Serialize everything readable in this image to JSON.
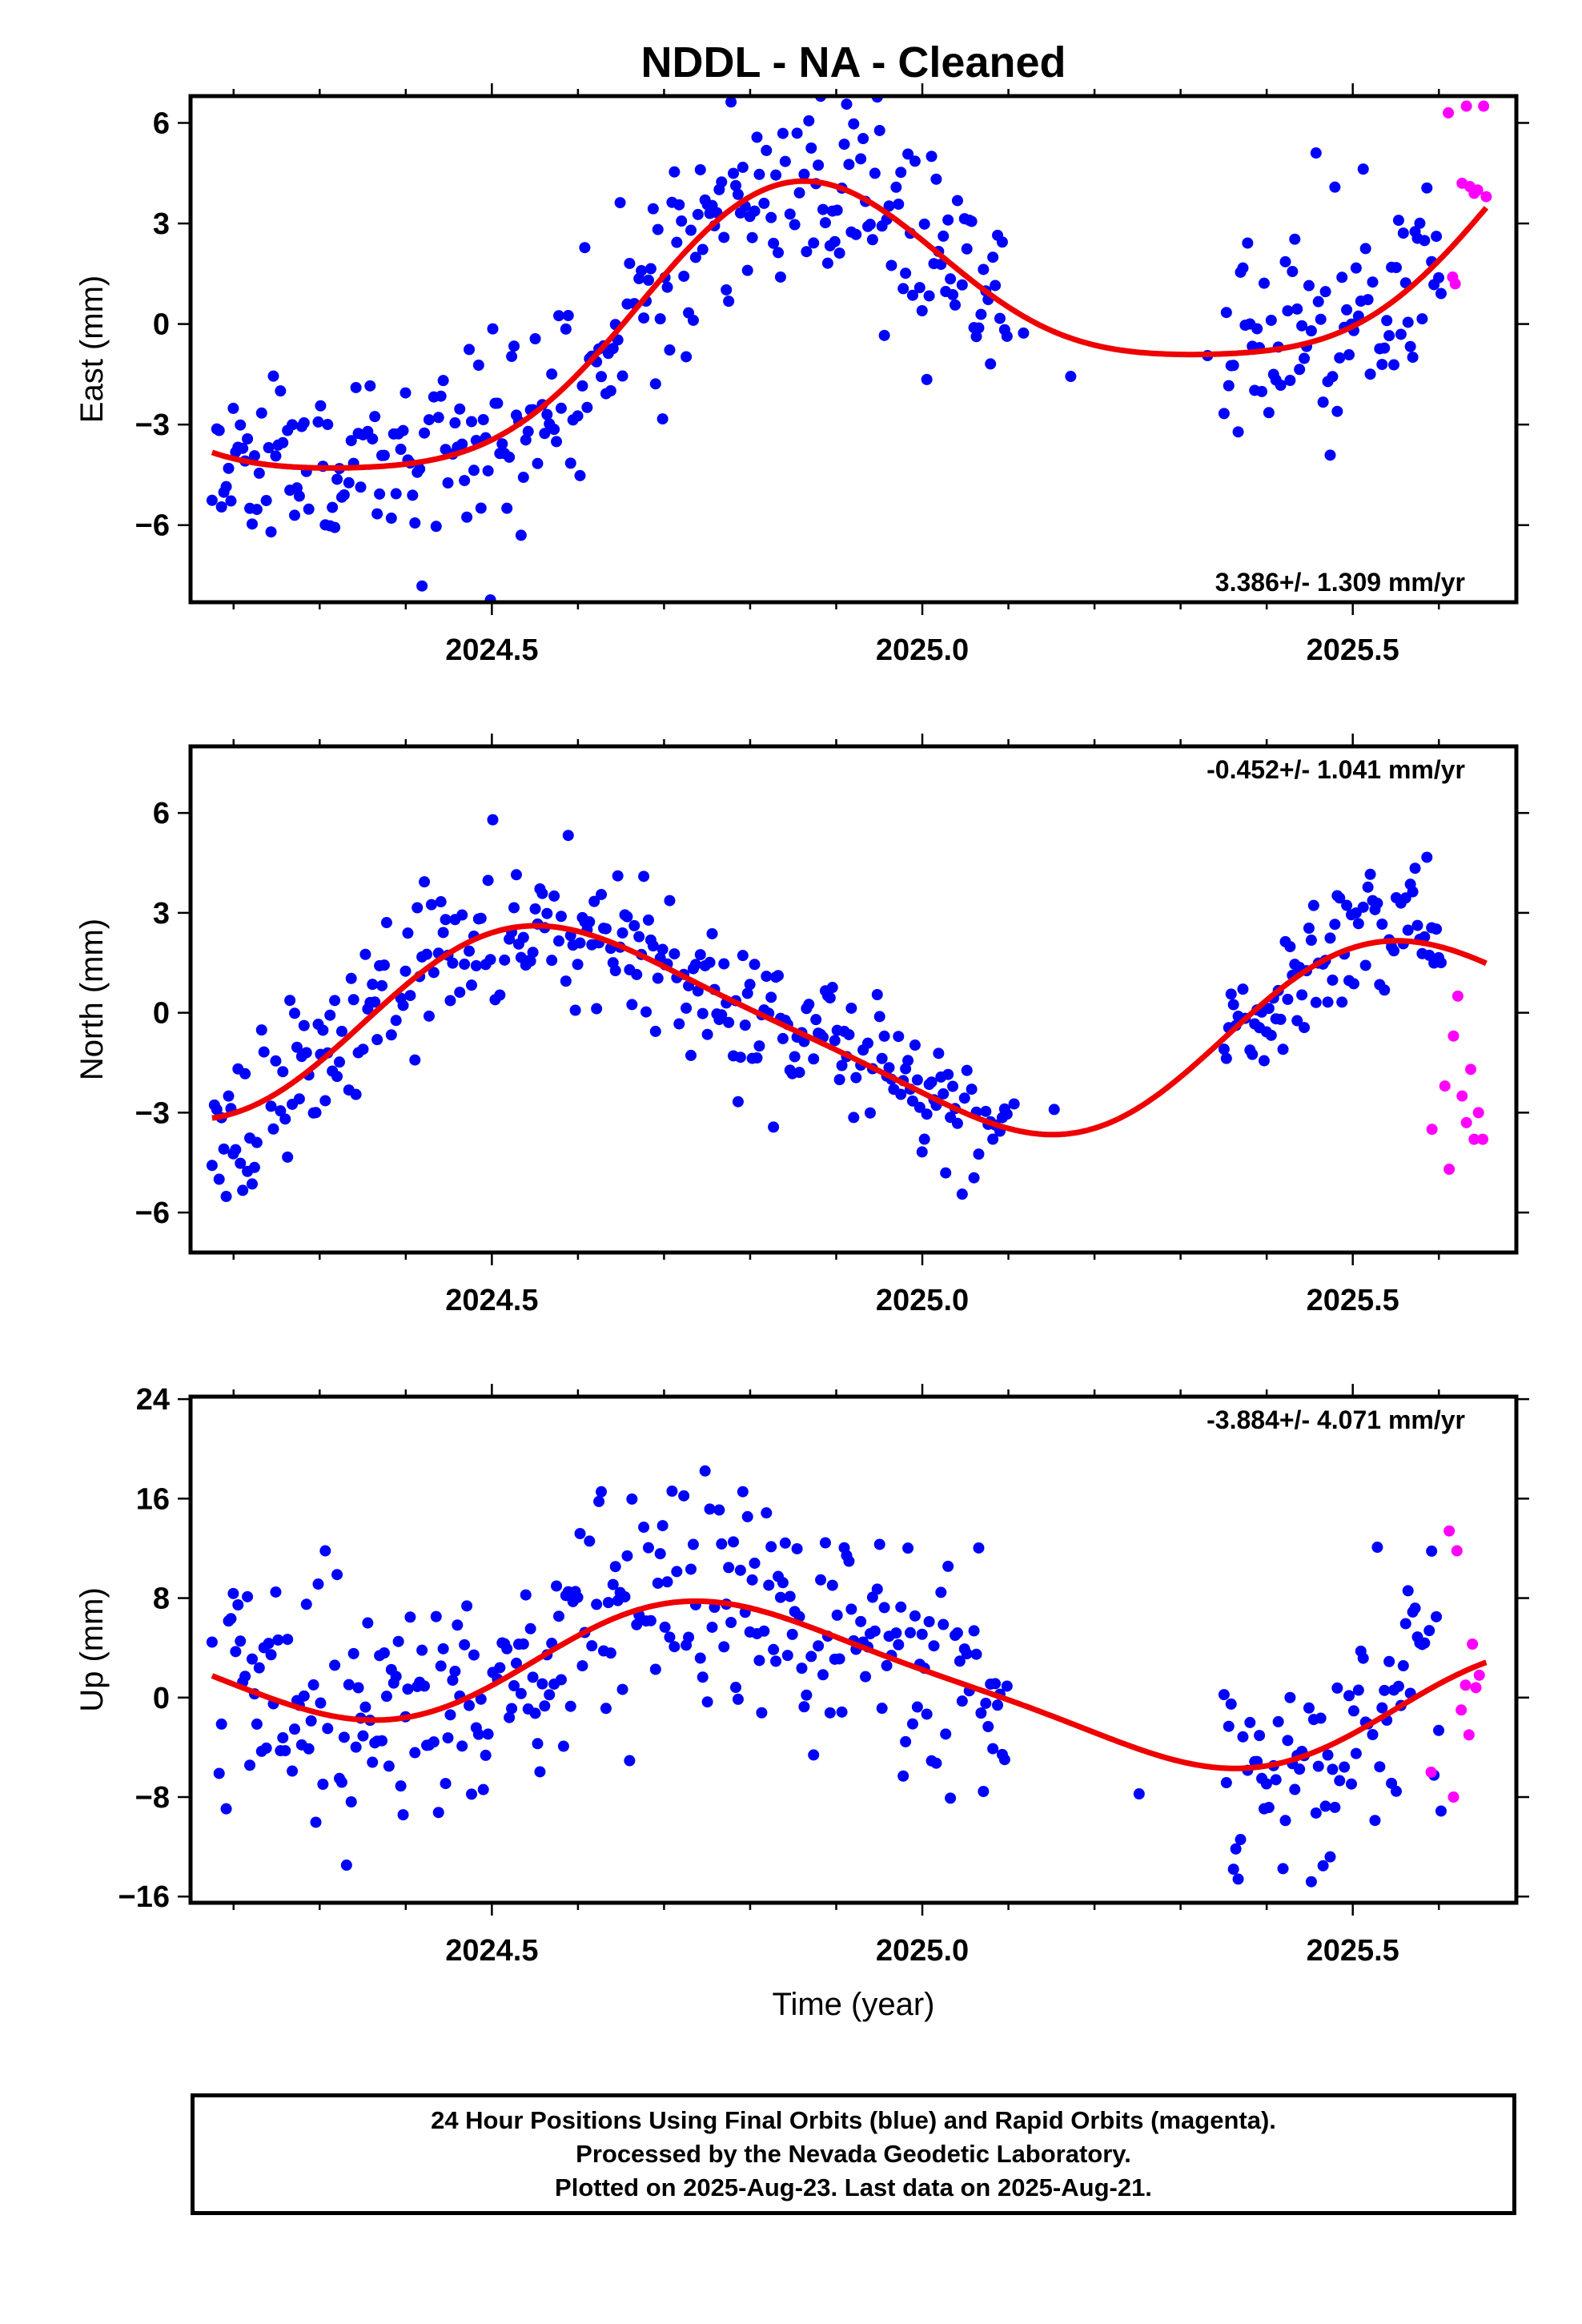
{
  "title": "NDDL  - NA - Cleaned",
  "footer": {
    "line1": "24 Hour Positions Using Final Orbits (blue) and Rapid Orbits (magenta).",
    "line2": "Processed by the Nevada Geodetic Laboratory.",
    "line3": "Plotted on 2025-Aug-23. Last data on 2025-Aug-21."
  },
  "colors": {
    "final": "#0000ff",
    "rapid": "#ff00ff",
    "model": "#ee0000",
    "axis": "#000000"
  },
  "chart_data": [
    {
      "type": "scatter",
      "id": "east",
      "ylabel": "East (mm)",
      "rate_label": "3.386+/- 1.309 mm/yr",
      "rate_position": "bottom-right",
      "xlim": [
        2024.15,
        2025.69
      ],
      "ylim": [
        -8.3,
        6.8
      ],
      "yticks": [
        -6,
        -3,
        0,
        3,
        6
      ],
      "xticks": [
        2024.5,
        2025.0,
        2025.5
      ],
      "xtick_labels": [
        "2024.5",
        "2025.0",
        "2025.5"
      ],
      "ytick_labels": [
        "−6",
        "−3",
        "0",
        "3",
        "6"
      ],
      "model": {
        "x0": 2024.8,
        "c": 0.0,
        "v": 3.386,
        "A": 1.2,
        "B": 3.2,
        "C": 0.3,
        "D": 0.6
      },
      "final": {
        "x0": 2024.175,
        "x1": 2025.605,
        "step": 0.00274,
        "gap": [
          2025.1,
          2025.35
        ],
        "noise": 1.5,
        "seed": 11
      },
      "rapid": [
        [
          2025.611,
          6.3
        ],
        [
          2025.616,
          1.4
        ],
        [
          2025.619,
          1.2
        ],
        [
          2025.627,
          4.2
        ],
        [
          2025.632,
          6.5
        ],
        [
          2025.636,
          4.1
        ],
        [
          2025.641,
          3.9
        ],
        [
          2025.645,
          4.0
        ],
        [
          2025.652,
          6.5
        ],
        [
          2025.655,
          3.8
        ]
      ]
    },
    {
      "type": "scatter",
      "id": "north",
      "ylabel": "North (mm)",
      "rate_label": "-0.452+/- 1.041 mm/yr",
      "rate_position": "top-right",
      "xlim": [
        2024.15,
        2025.69
      ],
      "ylim": [
        -7.2,
        8.0
      ],
      "yticks": [
        -6,
        -3,
        0,
        3,
        6
      ],
      "xticks": [
        2024.5,
        2025.0,
        2025.5
      ],
      "xtick_labels": [
        "2024.5",
        "2025.0",
        "2025.5"
      ],
      "ytick_labels": [
        "−6",
        "−3",
        "0",
        "3",
        "6"
      ],
      "model": {
        "x0": 2024.8,
        "c": -0.5,
        "v": -0.452,
        "A": -2.7,
        "B": 0.9,
        "C": 0.4,
        "D": -0.3
      },
      "final": {
        "x0": 2024.175,
        "x1": 2025.605,
        "step": 0.00274,
        "gap": [
          2025.1,
          2025.35
        ],
        "noise": 1.1,
        "seed": 23
      },
      "rapid": [
        [
          2025.592,
          -3.5
        ],
        [
          2025.607,
          -2.2
        ],
        [
          2025.612,
          -4.7
        ],
        [
          2025.617,
          -0.7
        ],
        [
          2025.622,
          0.5
        ],
        [
          2025.627,
          -2.5
        ],
        [
          2025.632,
          -3.3
        ],
        [
          2025.637,
          -1.7
        ],
        [
          2025.641,
          -3.8
        ],
        [
          2025.646,
          -3.0
        ],
        [
          2025.651,
          -3.8
        ]
      ]
    },
    {
      "type": "scatter",
      "id": "up",
      "ylabel": "Up (mm)",
      "xlabel": "Time (year)",
      "rate_label": "-3.884+/- 4.071 mm/yr",
      "rate_position": "top-right",
      "xlim": [
        2024.15,
        2025.69
      ],
      "ylim": [
        -16.5,
        24.2
      ],
      "yticks": [
        -16,
        -8,
        0,
        8,
        16,
        24
      ],
      "xticks": [
        2024.5,
        2025.0,
        2025.5
      ],
      "xtick_labels": [
        "2024.5",
        "2025.0",
        "2025.5"
      ],
      "ytick_labels": [
        "−16",
        "−8",
        "0",
        "8",
        "16",
        "24"
      ],
      "model": {
        "x0": 2024.8,
        "c": 2.0,
        "v": -3.884,
        "A": 0.0,
        "B": 5.2,
        "C": -1.0,
        "D": 0.0
      },
      "final": {
        "x0": 2024.175,
        "x1": 2025.605,
        "step": 0.00274,
        "gap": [
          2025.1,
          2025.35
        ],
        "noise": 5.0,
        "seed": 37
      },
      "rapid": [
        [
          2025.591,
          -6.0
        ],
        [
          2025.612,
          13.4
        ],
        [
          2025.617,
          -8.0
        ],
        [
          2025.621,
          11.8
        ],
        [
          2025.626,
          -1.0
        ],
        [
          2025.631,
          1.0
        ],
        [
          2025.635,
          -3.0
        ],
        [
          2025.639,
          4.3
        ],
        [
          2025.643,
          0.8
        ],
        [
          2025.647,
          1.8
        ]
      ]
    }
  ]
}
